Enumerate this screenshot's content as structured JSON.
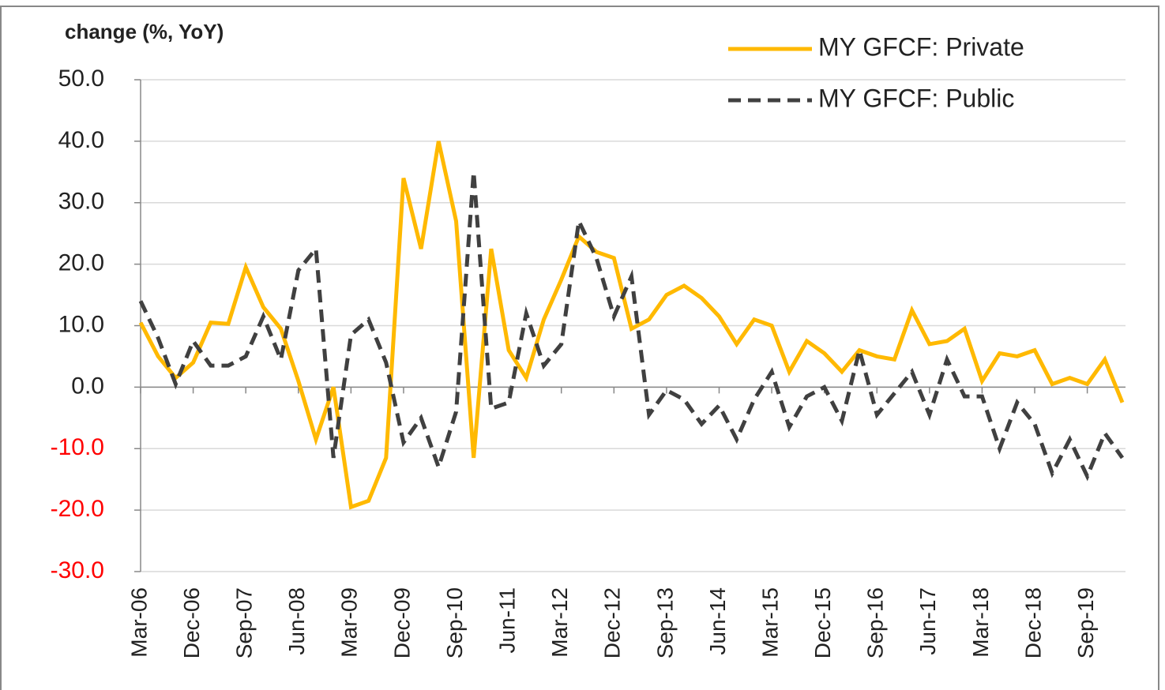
{
  "chart_data": {
    "type": "line",
    "y_axis_label": "change (%, YoY)",
    "categories": [
      "Mar-06",
      null,
      null,
      "Dec-06",
      null,
      null,
      "Sep-07",
      null,
      null,
      "Jun-08",
      null,
      null,
      "Mar-09",
      null,
      null,
      "Dec-09",
      null,
      null,
      "Sep-10",
      null,
      null,
      "Jun-11",
      null,
      null,
      "Mar-12",
      null,
      null,
      "Dec-12",
      null,
      null,
      "Sep-13",
      null,
      null,
      "Jun-14",
      null,
      null,
      "Mar-15",
      null,
      null,
      "Dec-15",
      null,
      null,
      "Sep-16",
      null,
      null,
      "Jun-17",
      null,
      null,
      "Mar-18",
      null,
      null,
      "Dec-18",
      null,
      null,
      "Sep-19",
      null,
      null
    ],
    "series": [
      {
        "name": "MY GFCF: Private",
        "color": "#ffb900",
        "dash": false,
        "values": [
          10.5,
          5,
          1.5,
          4,
          10.5,
          10.3,
          19.5,
          13,
          9.5,
          1,
          -8.5,
          0,
          -19.5,
          -18.5,
          -11.5,
          34,
          22.5,
          40,
          27,
          -11.5,
          22.5,
          6,
          1.5,
          11,
          17.5,
          24.5,
          22,
          21,
          9.5,
          11,
          15,
          16.5,
          14.5,
          11.5,
          7,
          11,
          10,
          2.5,
          7.5,
          5.5,
          2.5,
          6,
          5,
          4.5,
          12.5,
          7,
          7.5,
          9.5,
          1,
          5.5,
          5,
          6,
          0.5,
          1.5,
          0.5,
          4.5,
          -2.5
        ]
      },
      {
        "name": "MY GFCF: Public",
        "color": "#404040",
        "dash": true,
        "values": [
          14,
          8,
          0.5,
          7.5,
          3.5,
          3.5,
          5,
          11.5,
          4.5,
          19,
          22.5,
          -11.5,
          8.5,
          11,
          4,
          -9,
          -5,
          -13,
          -4,
          35,
          -3.5,
          -2.5,
          12,
          3.5,
          7,
          27,
          21,
          11.5,
          18,
          -4.5,
          -0.5,
          -2,
          -6,
          -3,
          -8.5,
          -2,
          2.5,
          -6.5,
          -1.5,
          0,
          -5.5,
          6,
          -4.5,
          -1,
          2.5,
          -4.5,
          4.5,
          -1.5,
          -1.5,
          -10,
          -2.5,
          -6,
          -14,
          -8.5,
          -14.5,
          -7.5,
          -11.5
        ]
      }
    ],
    "ylim": [
      -30,
      50
    ],
    "yticks": [
      {
        "value": -30,
        "label": "-30.0"
      },
      {
        "value": -20,
        "label": "-20.0"
      },
      {
        "value": -10,
        "label": "-10.0"
      },
      {
        "value": 0,
        "label": "0.0"
      },
      {
        "value": 10,
        "label": "10.0"
      },
      {
        "value": 20,
        "label": "20.0"
      },
      {
        "value": 30,
        "label": "30.0"
      },
      {
        "value": 40,
        "label": "40.0"
      },
      {
        "value": 50,
        "label": "50.0"
      }
    ],
    "negative_tick_color": "#ff0000",
    "grid": true,
    "legend": "top-right"
  }
}
